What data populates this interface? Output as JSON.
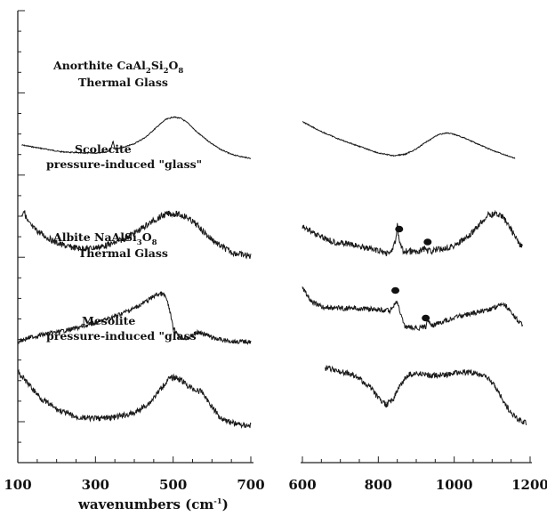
{
  "chart_data": [
    {
      "type": "line",
      "panel": "left",
      "x_range": [
        100,
        700
      ],
      "x_ticks": [
        "100",
        "300",
        "500",
        "700"
      ],
      "series": [
        {
          "name": "Anorthite CaAl2Si2O8 Thermal Glass",
          "x": [
            110,
            160,
            210,
            260,
            300,
            330,
            340,
            345,
            350,
            370,
            400,
            430,
            460,
            480,
            500,
            520,
            540,
            560,
            590,
            620,
            650,
            680,
            700
          ],
          "y": [
            0.2,
            0.15,
            0.1,
            0.08,
            0.08,
            0.1,
            0.14,
            0.26,
            0.14,
            0.16,
            0.22,
            0.32,
            0.48,
            0.58,
            0.62,
            0.6,
            0.52,
            0.4,
            0.26,
            0.14,
            0.06,
            0.02,
            0.0
          ]
        },
        {
          "name": "Scolecite pressure-induced \"glass\"",
          "x": [
            110,
            115,
            125,
            140,
            170,
            200,
            230,
            260,
            290,
            320,
            350,
            380,
            410,
            440,
            470,
            490,
            510,
            530,
            550,
            570,
            590,
            620,
            650,
            680,
            700
          ],
          "y": [
            0.6,
            0.7,
            0.52,
            0.42,
            0.3,
            0.2,
            0.14,
            0.12,
            0.12,
            0.15,
            0.2,
            0.28,
            0.38,
            0.5,
            0.6,
            0.64,
            0.63,
            0.6,
            0.52,
            0.42,
            0.3,
            0.16,
            0.06,
            0.02,
            0.0
          ]
        },
        {
          "name": "Albite NaAlSi3O8 Thermal Glass",
          "x": [
            100,
            130,
            160,
            200,
            250,
            300,
            350,
            400,
            430,
            455,
            470,
            480,
            490,
            500,
            520,
            540,
            555,
            565,
            580,
            600,
            630,
            660,
            700
          ],
          "y": [
            0.0,
            0.06,
            0.1,
            0.14,
            0.2,
            0.28,
            0.38,
            0.5,
            0.6,
            0.7,
            0.72,
            0.68,
            0.5,
            0.2,
            0.06,
            0.05,
            0.12,
            0.14,
            0.12,
            0.06,
            0.02,
            0.0,
            0.0
          ]
        },
        {
          "name": "Mesolite pressure-induced \"glass\"",
          "x": [
            100,
            130,
            160,
            200,
            250,
            300,
            350,
            400,
            440,
            470,
            490,
            505,
            520,
            540,
            560,
            575,
            590,
            620,
            650,
            680,
            700
          ],
          "y": [
            0.8,
            0.6,
            0.4,
            0.24,
            0.12,
            0.1,
            0.12,
            0.18,
            0.34,
            0.56,
            0.7,
            0.72,
            0.68,
            0.58,
            0.52,
            0.5,
            0.36,
            0.12,
            0.04,
            0.0,
            0.0
          ]
        }
      ]
    },
    {
      "type": "line",
      "panel": "right",
      "x_range": [
        600,
        1200
      ],
      "x_ticks": [
        "600",
        "800",
        "1000",
        "1200"
      ],
      "series": [
        {
          "name": "Anorthite CaAl2Si2O8 Thermal Glass",
          "x": [
            600,
            650,
            700,
            750,
            800,
            840,
            870,
            900,
            930,
            960,
            980,
            1000,
            1030,
            1060,
            1100,
            1130,
            1160
          ],
          "y": [
            0.55,
            0.4,
            0.28,
            0.18,
            0.08,
            0.04,
            0.06,
            0.14,
            0.26,
            0.36,
            0.38,
            0.36,
            0.3,
            0.22,
            0.12,
            0.06,
            0.0
          ]
        },
        {
          "name": "Scolecite pressure-induced \"glass\"",
          "x": [
            600,
            640,
            680,
            720,
            760,
            800,
            830,
            845,
            850,
            855,
            865,
            900,
            925,
            930,
            940,
            960,
            1000,
            1040,
            1070,
            1090,
            1110,
            1130,
            1150,
            1170,
            1180
          ],
          "y": [
            0.45,
            0.32,
            0.22,
            0.18,
            0.14,
            0.08,
            0.04,
            0.2,
            0.46,
            0.22,
            0.08,
            0.06,
            0.12,
            0.08,
            0.08,
            0.1,
            0.16,
            0.3,
            0.5,
            0.62,
            0.64,
            0.58,
            0.4,
            0.2,
            0.12
          ]
        },
        {
          "name": "Albite NaAlSi3O8 Thermal Glass",
          "x": [
            600,
            620,
            650,
            700,
            750,
            800,
            830,
            845,
            850,
            858,
            870,
            900,
            925,
            932,
            940,
            970,
            1000,
            1030,
            1060,
            1090,
            1110,
            1130,
            1150,
            1170,
            1180
          ],
          "y": [
            0.82,
            0.62,
            0.52,
            0.5,
            0.5,
            0.48,
            0.46,
            0.58,
            0.6,
            0.42,
            0.22,
            0.2,
            0.22,
            0.34,
            0.24,
            0.3,
            0.36,
            0.4,
            0.44,
            0.48,
            0.52,
            0.58,
            0.44,
            0.3,
            0.26
          ]
        },
        {
          "name": "Mesolite pressure-induced \"glass\"",
          "x": [
            660,
            690,
            720,
            750,
            780,
            800,
            820,
            840,
            860,
            880,
            900,
            940,
            980,
            1020,
            1060,
            1090,
            1110,
            1130,
            1150,
            1170,
            1190
          ],
          "y": [
            0.86,
            0.82,
            0.78,
            0.7,
            0.56,
            0.4,
            0.3,
            0.4,
            0.62,
            0.76,
            0.78,
            0.74,
            0.76,
            0.8,
            0.78,
            0.7,
            0.56,
            0.36,
            0.18,
            0.08,
            0.04
          ]
        }
      ],
      "markers": [
        {
          "series": 1,
          "x": 855
        },
        {
          "series": 1,
          "x": 930
        },
        {
          "series": 2,
          "x": 845
        },
        {
          "series": 2,
          "x": 925
        }
      ]
    }
  ],
  "labels": {
    "anorthite_line1": "Anorthite CaAl",
    "anorthite_sub1": "2",
    "anorthite_mid": "Si",
    "anorthite_sub2": "2",
    "anorthite_end": "O",
    "anorthite_sub3": "8",
    "anorthite_line2": "Thermal Glass",
    "scolecite_line1": "Scolecite",
    "scolecite_line2": "pressure-induced \"glass\"",
    "albite_line1": "Albite NaAlSi",
    "albite_sub1": "3",
    "albite_end": "O",
    "albite_sub2": "8",
    "albite_line2": "Thermal Glass",
    "mesolite_line1": "Mesolite",
    "mesolite_line2": "pressure-induced \"glass\"",
    "xlabel_main": "wavenumbers  (cm",
    "xlabel_sup": "-1",
    "xlabel_close": ")"
  }
}
